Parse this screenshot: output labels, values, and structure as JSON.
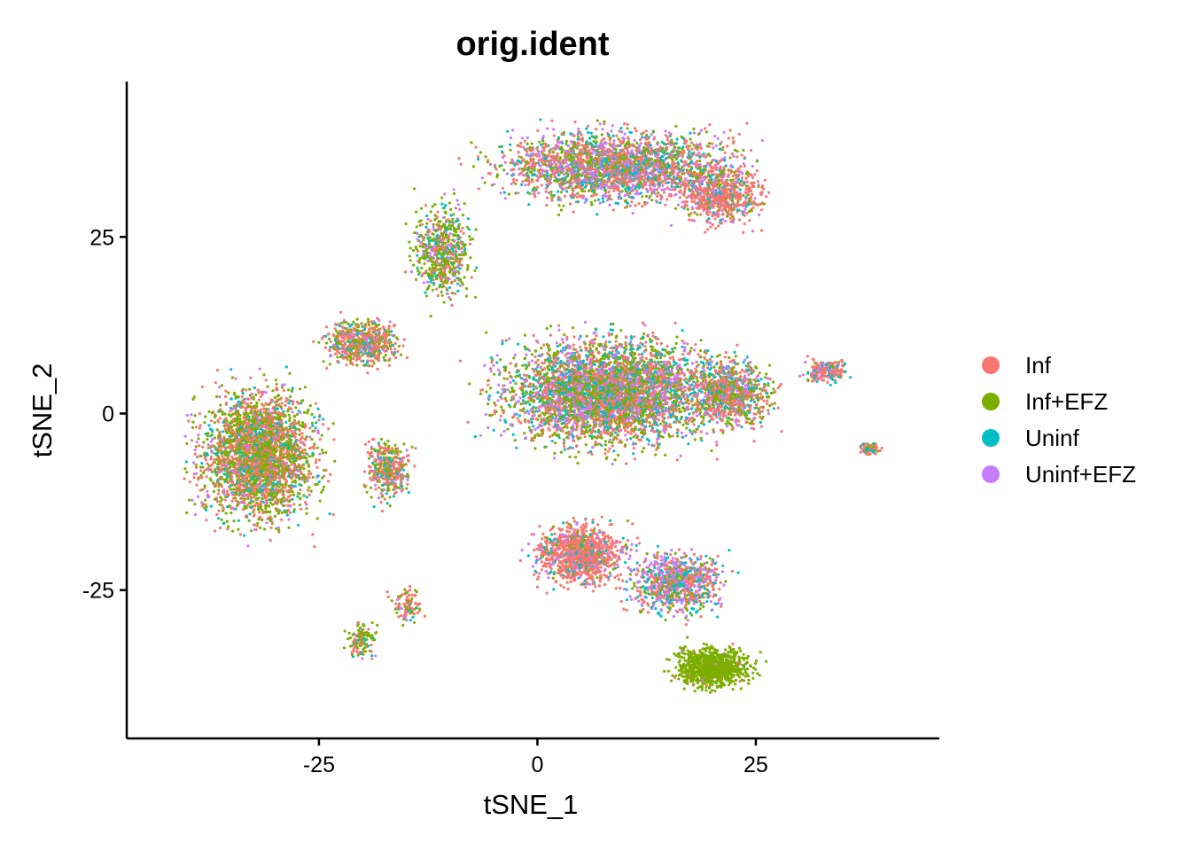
{
  "chart_data": {
    "type": "scatter",
    "title": "orig.ident",
    "xlabel": "tSNE_1",
    "ylabel": "tSNE_2",
    "xlim": [
      -47,
      46
    ],
    "ylim": [
      -46,
      47
    ],
    "xticks": [
      -25,
      0,
      25
    ],
    "yticks": [
      -25,
      0,
      25
    ],
    "xtick_labels": [
      "-25",
      "0",
      "25"
    ],
    "ytick_labels": [
      "-25",
      "0",
      "25"
    ],
    "grid": false,
    "legend_position": "right",
    "series": [
      {
        "name": "Inf",
        "color": "#F8766D"
      },
      {
        "name": "Inf+EFZ",
        "color": "#7CAE00"
      },
      {
        "name": "Uninf",
        "color": "#00BFC4"
      },
      {
        "name": "Uninf+EFZ",
        "color": "#C77CFF"
      }
    ],
    "clusters": [
      {
        "center": [
          9,
          35
        ],
        "spread": [
          16,
          6
        ],
        "count": 2600,
        "weights": [
          0.35,
          0.25,
          0.17,
          0.23
        ]
      },
      {
        "center": [
          21,
          31
        ],
        "spread": [
          6,
          5
        ],
        "count": 700,
        "weights": [
          0.7,
          0.1,
          0.1,
          0.1
        ]
      },
      {
        "center": [
          -11,
          23
        ],
        "spread": [
          4,
          8
        ],
        "count": 600,
        "weights": [
          0.15,
          0.55,
          0.15,
          0.15
        ]
      },
      {
        "center": [
          8,
          3
        ],
        "spread": [
          14,
          9
        ],
        "count": 4200,
        "weights": [
          0.3,
          0.35,
          0.17,
          0.18
        ]
      },
      {
        "center": [
          22,
          3
        ],
        "spread": [
          6,
          6
        ],
        "count": 900,
        "weights": [
          0.4,
          0.3,
          0.15,
          0.15
        ]
      },
      {
        "center": [
          33,
          6
        ],
        "spread": [
          3,
          2
        ],
        "count": 200,
        "weights": [
          0.6,
          0.1,
          0.15,
          0.15
        ]
      },
      {
        "center": [
          -20,
          10
        ],
        "spread": [
          5,
          4
        ],
        "count": 600,
        "weights": [
          0.5,
          0.3,
          0.1,
          0.1
        ]
      },
      {
        "center": [
          -32,
          -6
        ],
        "spread": [
          8,
          11
        ],
        "count": 2800,
        "weights": [
          0.38,
          0.42,
          0.12,
          0.08
        ]
      },
      {
        "center": [
          -17,
          -8
        ],
        "spread": [
          3,
          5
        ],
        "count": 400,
        "weights": [
          0.45,
          0.35,
          0.1,
          0.1
        ]
      },
      {
        "center": [
          -20,
          -32
        ],
        "spread": [
          2,
          3
        ],
        "count": 120,
        "weights": [
          0.3,
          0.5,
          0.1,
          0.1
        ]
      },
      {
        "center": [
          -15,
          -27
        ],
        "spread": [
          2,
          3
        ],
        "count": 100,
        "weights": [
          0.5,
          0.3,
          0.1,
          0.1
        ]
      },
      {
        "center": [
          5,
          -20
        ],
        "spread": [
          6,
          5
        ],
        "count": 1100,
        "weights": [
          0.7,
          0.08,
          0.12,
          0.1
        ]
      },
      {
        "center": [
          16,
          -24
        ],
        "spread": [
          6,
          5
        ],
        "count": 900,
        "weights": [
          0.35,
          0.15,
          0.25,
          0.25
        ]
      },
      {
        "center": [
          20,
          -36
        ],
        "spread": [
          5,
          3.5
        ],
        "count": 900,
        "weights": [
          0.03,
          0.94,
          0.02,
          0.01
        ]
      },
      {
        "center": [
          38,
          -5
        ],
        "spread": [
          1.5,
          1
        ],
        "count": 70,
        "weights": [
          0.6,
          0.2,
          0.2,
          0.0
        ]
      }
    ]
  }
}
